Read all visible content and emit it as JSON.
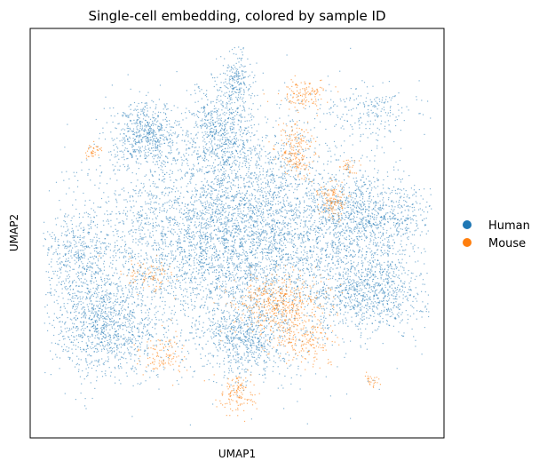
{
  "chart_data": {
    "type": "scatter",
    "title": "Single-cell embedding, colored by sample ID",
    "xlabel": "UMAP1",
    "ylabel": "UMAP2",
    "xlim": [
      0,
      100
    ],
    "ylim": [
      0,
      100
    ],
    "grid": false,
    "ticks": false,
    "legend_placement": "right",
    "series": [
      {
        "name": "Human",
        "color": "#1f77b4"
      },
      {
        "name": "Mouse",
        "color": "#ff7f0e"
      }
    ],
    "point_density_regions": [
      {
        "series": "Human",
        "center": [
          50,
          50
        ],
        "spread": [
          30,
          24
        ],
        "weight": 24000
      },
      {
        "series": "Human",
        "center": [
          18,
          28
        ],
        "spread": [
          12,
          12
        ],
        "weight": 5000
      },
      {
        "series": "Human",
        "center": [
          82,
          36
        ],
        "spread": [
          12,
          9
        ],
        "weight": 4000
      },
      {
        "series": "Human",
        "center": [
          82,
          54
        ],
        "spread": [
          14,
          9
        ],
        "weight": 4000
      },
      {
        "series": "Human",
        "center": [
          28,
          74
        ],
        "spread": [
          7,
          7
        ],
        "weight": 2500
      },
      {
        "series": "Human",
        "center": [
          46,
          76
        ],
        "spread": [
          7,
          10
        ],
        "weight": 2500
      },
      {
        "series": "Human",
        "center": [
          52,
          24
        ],
        "spread": [
          9,
          8
        ],
        "weight": 2500
      },
      {
        "series": "Human",
        "center": [
          50,
          88
        ],
        "spread": [
          3,
          6
        ],
        "weight": 800
      },
      {
        "series": "Human",
        "center": [
          82,
          80
        ],
        "spread": [
          10,
          6
        ],
        "weight": 900
      },
      {
        "series": "Human",
        "center": [
          12,
          45
        ],
        "spread": [
          9,
          10
        ],
        "weight": 2000
      },
      {
        "series": "Mouse",
        "center": [
          64,
          70
        ],
        "spread": [
          4,
          6
        ],
        "weight": 900
      },
      {
        "series": "Mouse",
        "center": [
          66,
          84
        ],
        "spread": [
          5,
          3
        ],
        "weight": 600
      },
      {
        "series": "Mouse",
        "center": [
          73,
          58
        ],
        "spread": [
          3,
          4
        ],
        "weight": 600
      },
      {
        "series": "Mouse",
        "center": [
          60,
          33
        ],
        "spread": [
          10,
          6
        ],
        "weight": 2200
      },
      {
        "series": "Mouse",
        "center": [
          66,
          24
        ],
        "spread": [
          7,
          5
        ],
        "weight": 900
      },
      {
        "series": "Mouse",
        "center": [
          50,
          11
        ],
        "spread": [
          4,
          4
        ],
        "weight": 600
      },
      {
        "series": "Mouse",
        "center": [
          32,
          20
        ],
        "spread": [
          5,
          5
        ],
        "weight": 500
      },
      {
        "series": "Mouse",
        "center": [
          28,
          40
        ],
        "spread": [
          6,
          4
        ],
        "weight": 400
      },
      {
        "series": "Mouse",
        "center": [
          15,
          70
        ],
        "spread": [
          2,
          2
        ],
        "weight": 180
      },
      {
        "series": "Mouse",
        "center": [
          77,
          66
        ],
        "spread": [
          2,
          2
        ],
        "weight": 150
      },
      {
        "series": "Mouse",
        "center": [
          82,
          14
        ],
        "spread": [
          2,
          2
        ],
        "weight": 120
      }
    ]
  }
}
